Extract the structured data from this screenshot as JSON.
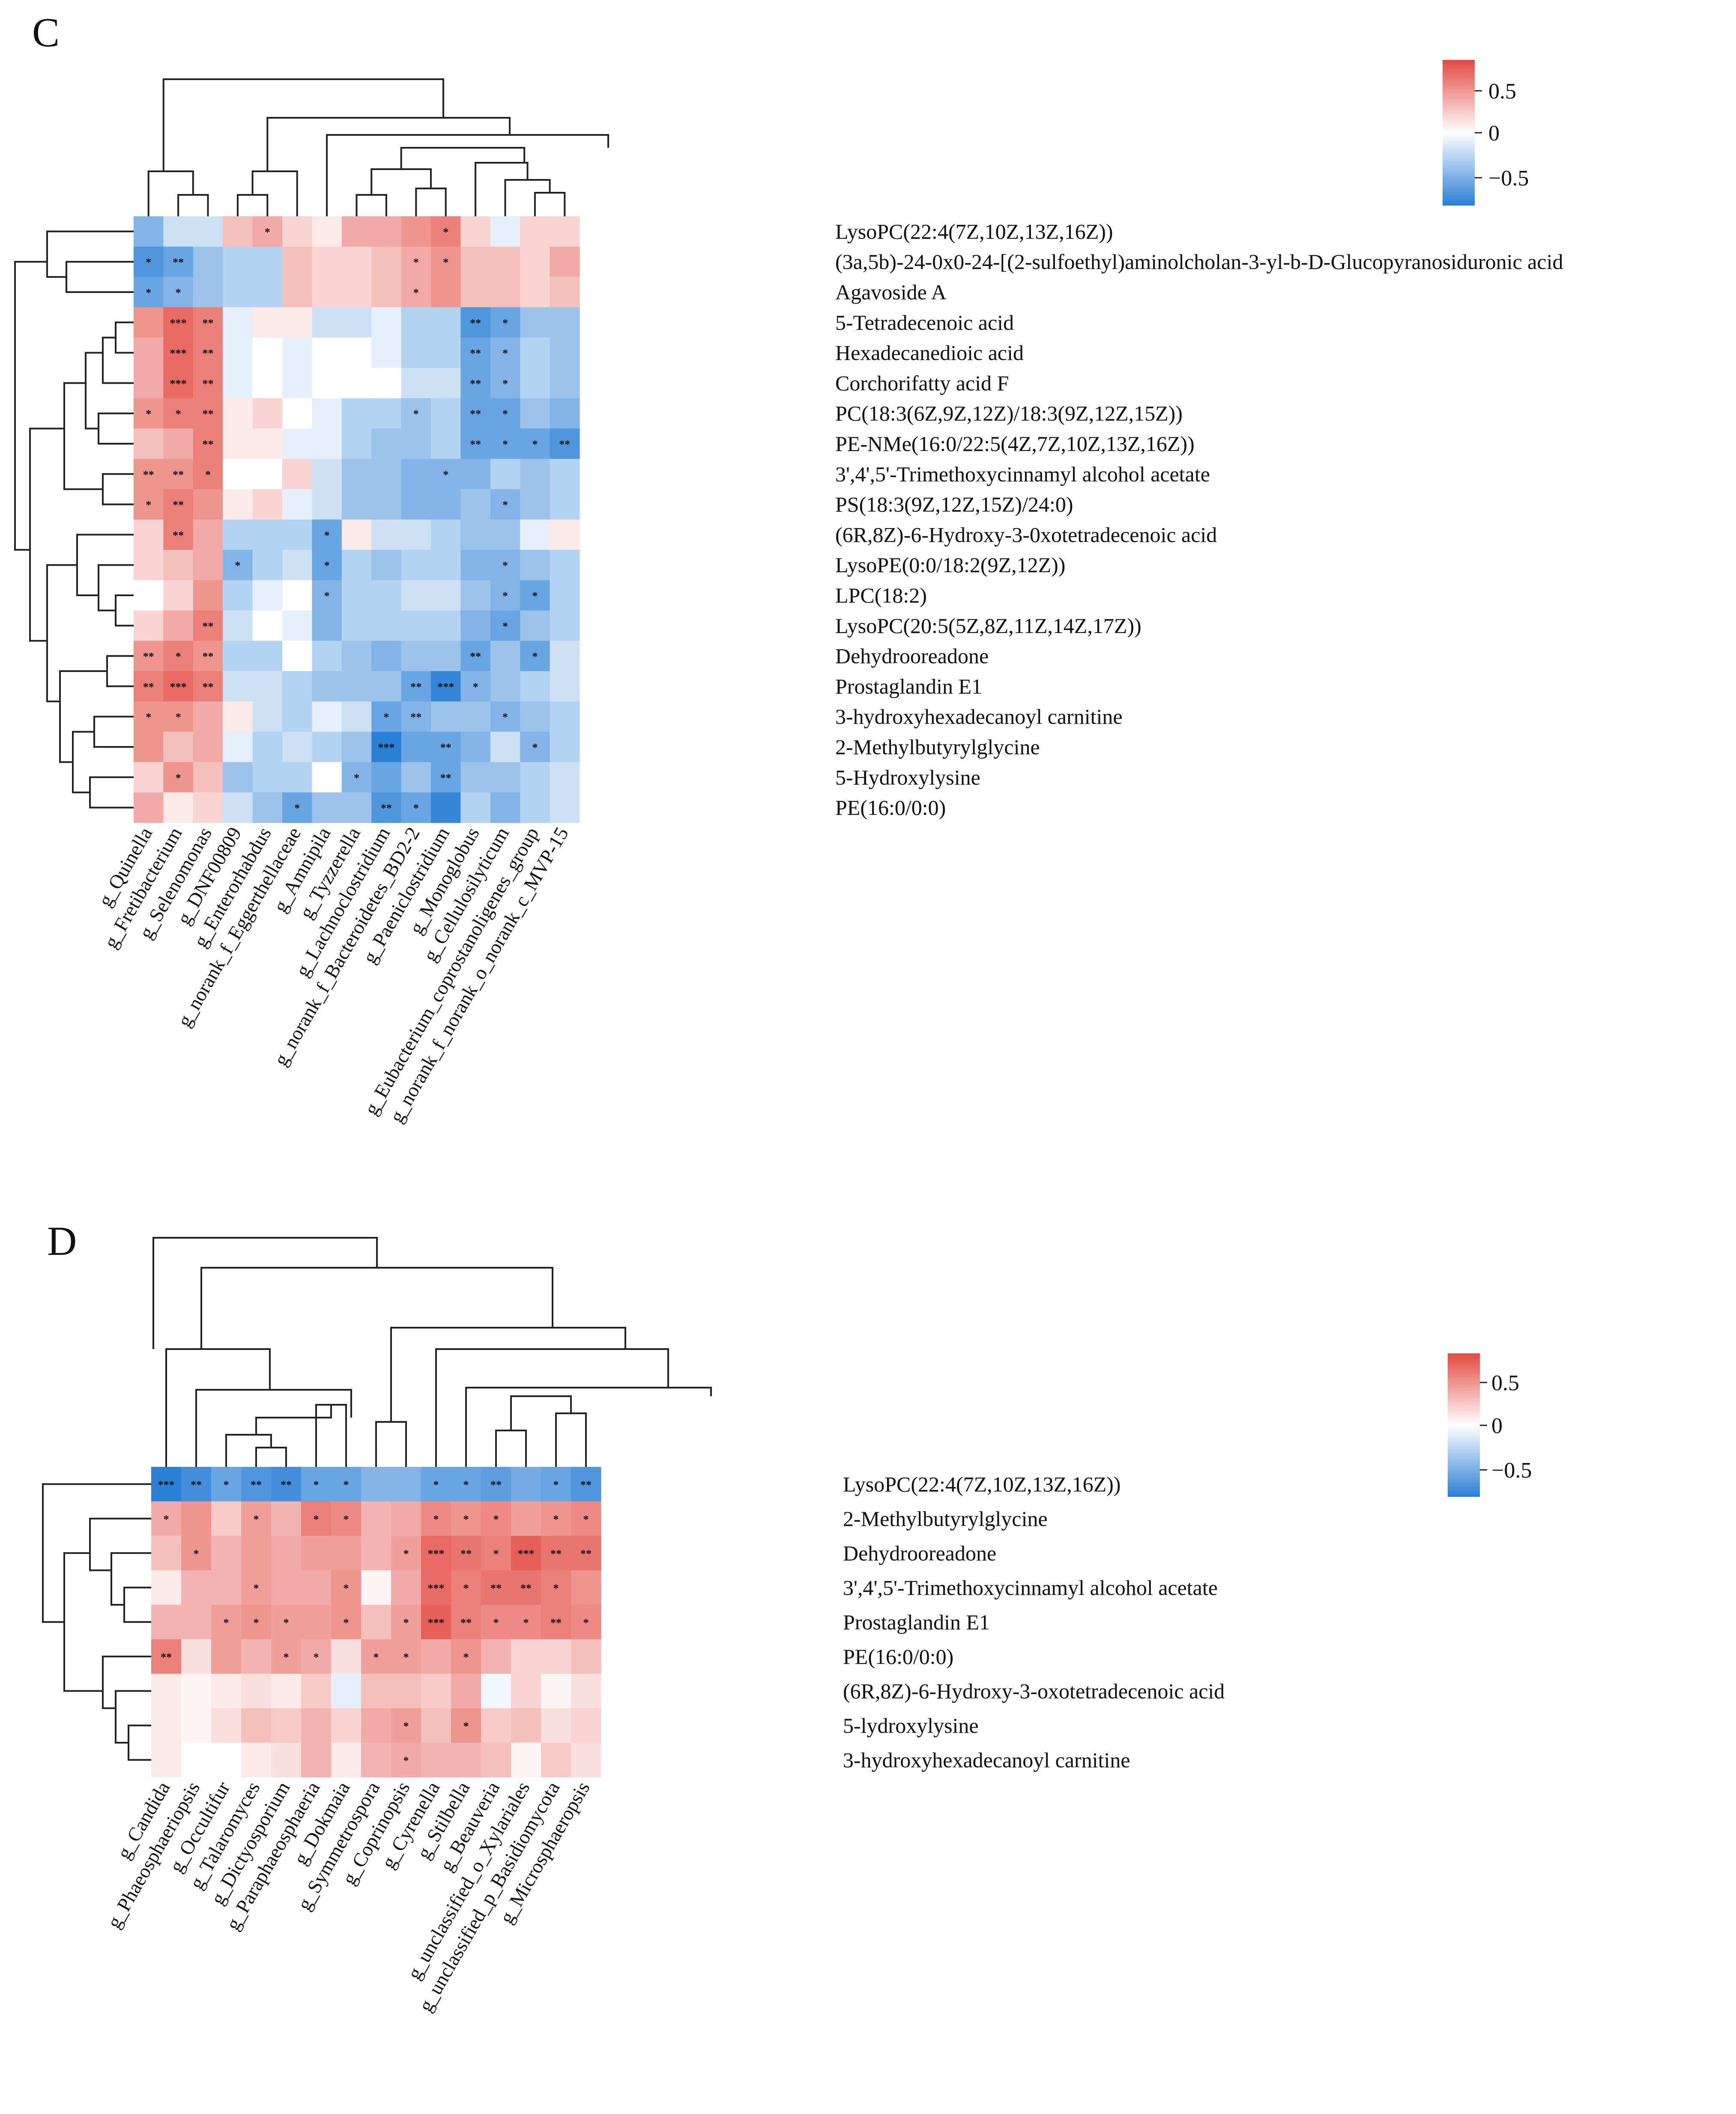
{
  "chart_data": [
    {
      "type": "heatmap",
      "panel_label": "C",
      "colorbar": {
        "ticks": [
          "0.5",
          "0",
          "−0.5"
        ],
        "min": -0.85,
        "max": 0.85,
        "colors": {
          "low": "#2a7fd6",
          "mid": "#ffffff",
          "high": "#e34a42"
        }
      },
      "rows": [
        "LysoPC(22:4(7Z,10Z,13Z,16Z))",
        "(3a,5b)-24-0x0-24-[(2-sulfoethyl)aminolcholan-3-yl-b-D-Glucopyranosiduronic acid",
        "Agavoside A",
        "5-Tetradecenoic acid",
        "Hexadecanedioic acid",
        "Corchorifatty acid F",
        "PC(18:3(6Z,9Z,12Z)/18:3(9Z,12Z,15Z))",
        "PE-NMe(16:0/22:5(4Z,7Z,10Z,13Z,16Z))",
        "3',4',5'-Trimethoxycinnamyl alcohol acetate",
        "PS(18:3(9Z,12Z,15Z)/24:0)",
        "(6R,8Z)-6-Hydroxy-3-0xotetradecenoic acid",
        "LysoPE(0:0/18:2(9Z,12Z))",
        "LPC(18:2)",
        "LysoPC(20:5(5Z,8Z,11Z,14Z,17Z))",
        "Dehydrooreadone",
        "Prostaglandin E1",
        "3-hydroxyhexadecanoyl carnitine",
        "2-Methylbutyrylglycine",
        "5-Hydroxylysine",
        "PE(16:0/0:0)"
      ],
      "columns": [
        "g_Quinella",
        "g_Fretibacterium",
        "g_Selenomonas",
        "g_DNF00809",
        "g_Enterorhabdus",
        "g_norank_f_Eggerthellaceae",
        "g_Amnipila",
        "g_Tyzzerella",
        "g_Lachnoclostridium",
        "g_norank_f_Bacteroidetes_BD2-2",
        "g_Paeniclostridium",
        "g_Monoglobus",
        "g_Cellulosilyticum",
        "g_Eubacterium_coprostanoligenes_group",
        "g_norank_f_norank_o_norank_c_MVP-15"
      ],
      "values": [
        [
          -0.5,
          -0.2,
          -0.2,
          0.3,
          0.4,
          0.2,
          0.1,
          0.4,
          0.4,
          0.5,
          0.6,
          0.2,
          -0.1,
          0.2,
          0.2
        ],
        [
          -0.7,
          -0.6,
          -0.4,
          -0.3,
          -0.3,
          0.3,
          0.2,
          0.2,
          0.3,
          0.4,
          0.5,
          0.3,
          0.3,
          0.2,
          0.4
        ],
        [
          -0.6,
          -0.5,
          -0.4,
          -0.3,
          -0.3,
          0.3,
          0.2,
          0.2,
          0.3,
          0.4,
          0.5,
          0.3,
          0.3,
          0.2,
          0.3
        ],
        [
          0.5,
          0.7,
          0.6,
          -0.1,
          0.1,
          0.1,
          -0.2,
          -0.2,
          -0.1,
          -0.3,
          -0.3,
          -0.7,
          -0.6,
          -0.4,
          -0.4
        ],
        [
          0.4,
          0.7,
          0.6,
          -0.1,
          0.0,
          -0.1,
          0.0,
          0.0,
          -0.1,
          -0.3,
          -0.3,
          -0.6,
          -0.5,
          -0.3,
          -0.4
        ],
        [
          0.4,
          0.7,
          0.6,
          -0.1,
          0.0,
          -0.1,
          0.0,
          0.0,
          0.0,
          -0.2,
          -0.2,
          -0.6,
          -0.5,
          -0.3,
          -0.4
        ],
        [
          0.5,
          0.6,
          0.6,
          0.1,
          0.2,
          0.0,
          -0.1,
          -0.3,
          -0.3,
          -0.4,
          -0.3,
          -0.6,
          -0.6,
          -0.4,
          -0.5
        ],
        [
          0.3,
          0.4,
          0.6,
          0.1,
          0.1,
          -0.1,
          -0.1,
          -0.3,
          -0.4,
          -0.4,
          -0.3,
          -0.6,
          -0.6,
          -0.6,
          -0.7
        ],
        [
          0.5,
          0.5,
          0.6,
          0.0,
          0.0,
          0.2,
          -0.2,
          -0.4,
          -0.4,
          -0.5,
          -0.5,
          -0.5,
          -0.3,
          -0.4,
          -0.3
        ],
        [
          0.5,
          0.6,
          0.5,
          0.1,
          0.2,
          -0.1,
          -0.2,
          -0.4,
          -0.4,
          -0.5,
          -0.5,
          -0.4,
          -0.5,
          -0.4,
          -0.3
        ],
        [
          0.2,
          0.6,
          0.4,
          -0.3,
          -0.3,
          -0.3,
          -0.6,
          0.1,
          -0.2,
          -0.2,
          -0.3,
          -0.4,
          -0.4,
          -0.1,
          0.1
        ],
        [
          0.2,
          0.3,
          0.4,
          -0.5,
          -0.3,
          -0.2,
          -0.6,
          -0.3,
          -0.4,
          -0.3,
          -0.3,
          -0.5,
          -0.5,
          -0.4,
          -0.3
        ],
        [
          0.0,
          0.2,
          0.5,
          -0.3,
          -0.1,
          0.0,
          -0.5,
          -0.3,
          -0.3,
          -0.2,
          -0.2,
          -0.4,
          -0.5,
          -0.6,
          -0.3
        ],
        [
          0.2,
          0.4,
          0.6,
          -0.2,
          0.0,
          -0.1,
          -0.5,
          -0.3,
          -0.3,
          -0.3,
          -0.3,
          -0.5,
          -0.6,
          -0.4,
          -0.3
        ],
        [
          0.5,
          0.6,
          0.5,
          -0.3,
          -0.3,
          0.0,
          -0.3,
          -0.4,
          -0.5,
          -0.4,
          -0.4,
          -0.6,
          -0.4,
          -0.6,
          -0.2
        ],
        [
          0.6,
          0.7,
          0.6,
          -0.2,
          -0.2,
          -0.3,
          -0.4,
          -0.4,
          -0.4,
          -0.6,
          -0.8,
          -0.5,
          -0.4,
          -0.3,
          -0.2
        ],
        [
          0.5,
          0.5,
          0.4,
          0.1,
          -0.2,
          -0.3,
          -0.1,
          -0.2,
          -0.6,
          -0.5,
          -0.4,
          -0.4,
          -0.5,
          -0.4,
          -0.3
        ],
        [
          0.5,
          0.3,
          0.4,
          -0.1,
          -0.3,
          -0.2,
          -0.3,
          -0.4,
          -0.9,
          -0.6,
          -0.6,
          -0.5,
          -0.2,
          -0.5,
          -0.3
        ],
        [
          0.2,
          0.5,
          0.3,
          -0.4,
          -0.3,
          -0.3,
          0.0,
          -0.5,
          -0.6,
          -0.4,
          -0.6,
          -0.4,
          -0.4,
          -0.3,
          -0.2
        ],
        [
          0.4,
          0.1,
          0.2,
          -0.2,
          -0.4,
          -0.6,
          -0.4,
          -0.4,
          -0.7,
          -0.6,
          -0.8,
          -0.3,
          -0.5,
          -0.3,
          -0.2
        ]
      ],
      "significance": [
        [
          "",
          "",
          "",
          "",
          "*",
          "",
          "",
          "",
          "",
          "",
          "*",
          "",
          "",
          "",
          ""
        ],
        [
          "*",
          "**",
          "",
          "",
          "",
          "",
          "",
          "",
          "",
          "*",
          "*",
          "",
          "",
          "",
          ""
        ],
        [
          "*",
          "*",
          "",
          "",
          "",
          "",
          "",
          "",
          "",
          "*",
          "",
          "",
          "",
          "",
          ""
        ],
        [
          "",
          "***",
          "**",
          "",
          "",
          "",
          "",
          "",
          "",
          "",
          "",
          "**",
          "*",
          "",
          ""
        ],
        [
          "",
          "***",
          "**",
          "",
          "",
          "",
          "",
          "",
          "",
          "",
          "",
          "**",
          "*",
          "",
          ""
        ],
        [
          "",
          "***",
          "**",
          "",
          "",
          "",
          "",
          "",
          "",
          "",
          "",
          "**",
          "*",
          "",
          ""
        ],
        [
          "*",
          "*",
          "**",
          "",
          "",
          "",
          "",
          "",
          "",
          "*",
          "",
          "**",
          "*",
          "",
          ""
        ],
        [
          "",
          "",
          "**",
          "",
          "",
          "",
          "",
          "",
          "",
          "",
          "",
          "**",
          "*",
          "*",
          "**"
        ],
        [
          "**",
          "**",
          "*",
          "",
          "",
          "",
          "",
          "",
          "",
          "",
          "*",
          "",
          "",
          "",
          ""
        ],
        [
          "*",
          "**",
          "",
          "",
          "",
          "",
          "",
          "",
          "",
          "",
          "",
          "",
          "*",
          "",
          ""
        ],
        [
          "",
          "**",
          "",
          "",
          "",
          "",
          "*",
          "",
          "",
          "",
          "",
          "",
          "",
          "",
          ""
        ],
        [
          "",
          "",
          "",
          "*",
          "",
          "",
          "*",
          "",
          "",
          "",
          "",
          "",
          "*",
          "",
          ""
        ],
        [
          "",
          "",
          "",
          "",
          "",
          "",
          "*",
          "",
          "",
          "",
          "",
          "",
          "*",
          "*",
          ""
        ],
        [
          "",
          "",
          "**",
          "",
          "",
          "",
          "",
          "",
          "",
          "",
          "",
          "",
          "*",
          "",
          ""
        ],
        [
          "**",
          "*",
          "**",
          "",
          "",
          "",
          "",
          "",
          "",
          "",
          "",
          "**",
          "",
          "*",
          ""
        ],
        [
          "**",
          "***",
          "**",
          "",
          "",
          "",
          "",
          "",
          "",
          "**",
          "***",
          "*",
          "",
          "",
          ""
        ],
        [
          "*",
          "*",
          "",
          "",
          "",
          "",
          "",
          "",
          "*",
          "**",
          "",
          "",
          "*",
          "",
          ""
        ],
        [
          "",
          "",
          "",
          "",
          "",
          "",
          "",
          "",
          "***",
          "",
          "**",
          "",
          "",
          "*",
          ""
        ],
        [
          "",
          "*",
          "",
          "",
          "",
          "",
          "",
          "*",
          "",
          "",
          "**",
          "",
          "",
          "",
          ""
        ],
        [
          "",
          "",
          "",
          "",
          "",
          "*",
          "",
          "",
          "**",
          "*",
          "",
          "",
          "",
          "",
          ""
        ]
      ]
    },
    {
      "type": "heatmap",
      "panel_label": "D",
      "colorbar": {
        "ticks": [
          "0.5",
          "0",
          "−0.5"
        ],
        "min": -0.85,
        "max": 0.85,
        "colors": {
          "low": "#2a7fd6",
          "mid": "#ffffff",
          "high": "#e34a42"
        }
      },
      "rows": [
        "LysoPC(22:4(7Z,10Z,13Z,16Z))",
        "2-Methylbutyrylglycine",
        "Dehydrooreadone",
        "3',4',5'-Trimethoxycinnamyl alcohol acetate",
        "Prostaglandin E1",
        "PE(16:0/0:0)",
        "(6R,8Z)-6-Hydroxy-3-oxotetradecenoic acid",
        "5-lydroxylysine",
        "3-hydroxyhexadecanoyl carnitine"
      ],
      "columns": [
        "g_Candida",
        "g_Phaeosphaeriopsis",
        "g_Occultifur",
        "g_Talaromyces",
        "g_Dictyosporium",
        "g_Paraphaeosphaeria",
        "g_Dokmaia",
        "g_Symmetrospora",
        "g_Coprinopsis",
        "g_Cyrenella",
        "g_Stilbella",
        "g_Beauveria",
        "g_unclassified_o_Xylariales",
        "g_unclassified_p_Basidiomycota",
        "g_Microsphaeropsis"
      ],
      "values": [
        [
          -0.85,
          -0.75,
          -0.6,
          -0.7,
          -0.75,
          -0.6,
          -0.6,
          -0.5,
          -0.5,
          -0.6,
          -0.6,
          -0.65,
          -0.55,
          -0.6,
          -0.7
        ],
        [
          0.4,
          0.5,
          0.25,
          0.45,
          0.35,
          0.6,
          0.55,
          0.35,
          0.4,
          0.55,
          0.5,
          0.55,
          0.45,
          0.5,
          0.55
        ],
        [
          0.3,
          0.5,
          0.35,
          0.45,
          0.4,
          0.45,
          0.45,
          0.35,
          0.45,
          0.7,
          0.65,
          0.6,
          0.75,
          0.65,
          0.65
        ],
        [
          0.1,
          0.35,
          0.35,
          0.45,
          0.4,
          0.4,
          0.5,
          0.05,
          0.4,
          0.7,
          0.6,
          0.65,
          0.65,
          0.6,
          0.5
        ],
        [
          0.35,
          0.35,
          0.45,
          0.5,
          0.45,
          0.45,
          0.5,
          0.3,
          0.45,
          0.75,
          0.6,
          0.55,
          0.55,
          0.6,
          0.55
        ],
        [
          0.6,
          0.15,
          0.45,
          0.35,
          0.45,
          0.4,
          0.15,
          0.45,
          0.45,
          0.4,
          0.5,
          0.35,
          0.2,
          0.2,
          0.3
        ],
        [
          0.1,
          0.05,
          0.1,
          0.15,
          0.1,
          0.25,
          -0.1,
          0.3,
          0.3,
          0.25,
          0.4,
          -0.05,
          0.2,
          0.05,
          0.15
        ],
        [
          0.1,
          0.05,
          0.15,
          0.3,
          0.25,
          0.35,
          0.2,
          0.4,
          0.45,
          0.3,
          0.5,
          0.25,
          0.3,
          0.15,
          0.2
        ],
        [
          0.1,
          0.0,
          0.0,
          0.1,
          0.15,
          0.35,
          0.1,
          0.35,
          0.4,
          0.35,
          0.35,
          0.3,
          0.05,
          0.25,
          0.15
        ]
      ],
      "significance": [
        [
          "***",
          "**",
          "*",
          "**",
          "**",
          "*",
          "*",
          "",
          "",
          "*",
          "*",
          "**",
          "",
          "*",
          "**"
        ],
        [
          "*",
          "",
          "",
          "*",
          "",
          "*",
          "*",
          "",
          "",
          "*",
          "*",
          "*",
          "",
          "*",
          "*"
        ],
        [
          "",
          "*",
          "",
          "",
          "",
          "",
          "",
          "",
          "*",
          "***",
          "**",
          "*",
          "***",
          "**",
          "**"
        ],
        [
          "",
          "",
          "",
          "*",
          "",
          "",
          "*",
          "",
          "",
          "***",
          "*",
          "**",
          "**",
          "*",
          ""
        ],
        [
          "",
          "",
          "*",
          "*",
          "*",
          "",
          "*",
          "",
          "*",
          "***",
          "**",
          "*",
          "*",
          "**",
          "*"
        ],
        [
          "**",
          "",
          "",
          "",
          "*",
          "*",
          "",
          "*",
          "*",
          "",
          "*",
          "",
          "",
          "",
          ""
        ],
        [
          "",
          "",
          "",
          "",
          "",
          "",
          "",
          "",
          "",
          "",
          "",
          "",
          "",
          "",
          ""
        ],
        [
          "",
          "",
          "",
          "",
          "",
          "",
          "",
          "",
          "*",
          "",
          "*",
          "",
          "",
          "",
          ""
        ],
        [
          "",
          "",
          "",
          "",
          "",
          "",
          "",
          "",
          "*",
          "",
          "",
          "",
          "",
          "",
          ""
        ]
      ]
    }
  ]
}
